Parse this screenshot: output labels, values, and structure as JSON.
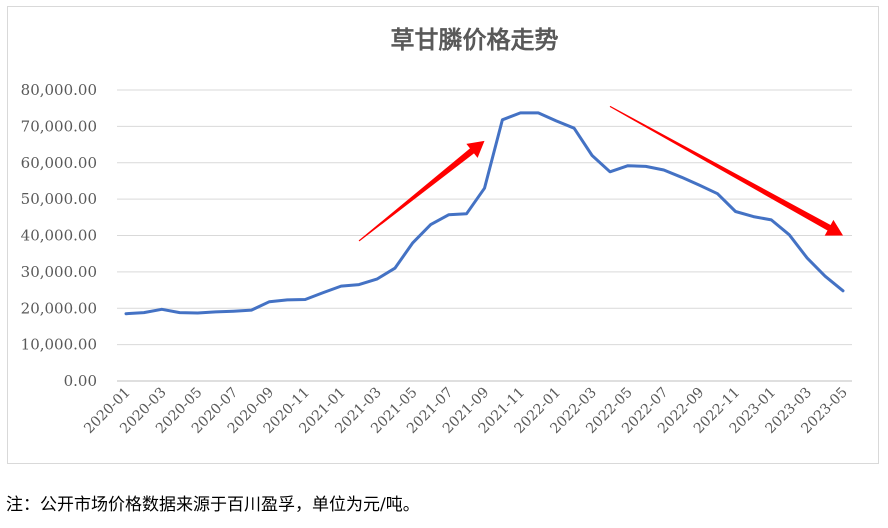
{
  "chart_data": {
    "type": "line",
    "title": "草甘膦价格走势",
    "xlabel": "",
    "ylabel": "",
    "ylim": [
      0,
      80000
    ],
    "yticks": [
      "0.00",
      "10,000.00",
      "20,000.00",
      "30,000.00",
      "40,000.00",
      "50,000.00",
      "60,000.00",
      "70,000.00",
      "80,000.00"
    ],
    "xticks": [
      "2020-01",
      "2020-03",
      "2020-05",
      "2020-07",
      "2020-09",
      "2020-11",
      "2021-01",
      "2021-03",
      "2021-05",
      "2021-07",
      "2021-09",
      "2021-11",
      "2022-01",
      "2022-03",
      "2022-05",
      "2022-07",
      "2022-09",
      "2022-11",
      "2023-01",
      "2023-03",
      "2023-05"
    ],
    "grid": true,
    "legend": "none",
    "series": [
      {
        "color": "#4472c4",
        "x": [
          "2020-01",
          "2020-02",
          "2020-03",
          "2020-04",
          "2020-05",
          "2020-06",
          "2020-07",
          "2020-08",
          "2020-09",
          "2020-10",
          "2020-11",
          "2020-12",
          "2021-01",
          "2021-02",
          "2021-03",
          "2021-04",
          "2021-05",
          "2021-06",
          "2021-07",
          "2021-08",
          "2021-09",
          "2021-10",
          "2021-11",
          "2021-12",
          "2022-01",
          "2022-02",
          "2022-03",
          "2022-04",
          "2022-05",
          "2022-06",
          "2022-07",
          "2022-08",
          "2022-09",
          "2022-10",
          "2022-11",
          "2022-12",
          "2023-01",
          "2023-02",
          "2023-03",
          "2023-04",
          "2023-05"
        ],
        "values": [
          18500,
          18800,
          19700,
          18800,
          18700,
          19000,
          19200,
          19500,
          21800,
          22300,
          22400,
          24300,
          26100,
          26500,
          28000,
          31000,
          38000,
          43000,
          45700,
          46000,
          53000,
          71800,
          73700,
          73700,
          71500,
          69500,
          62000,
          57500,
          59200,
          59000,
          58000,
          56000,
          53800,
          51500,
          46600,
          45200,
          44300,
          40200,
          33800,
          28800,
          24800
        ]
      }
    ],
    "annotations": [
      {
        "type": "arrow",
        "color": "#ff0000",
        "from": [
          "2021-02",
          38500
        ],
        "to": [
          "2021-09",
          66000
        ]
      },
      {
        "type": "arrow",
        "color": "#ff0000",
        "from": [
          "2022-04",
          75500
        ],
        "to": [
          "2023-05",
          40000
        ]
      }
    ]
  },
  "note": "注：公开市场价格数据来源于百川盈孚，单位为元/吨。"
}
